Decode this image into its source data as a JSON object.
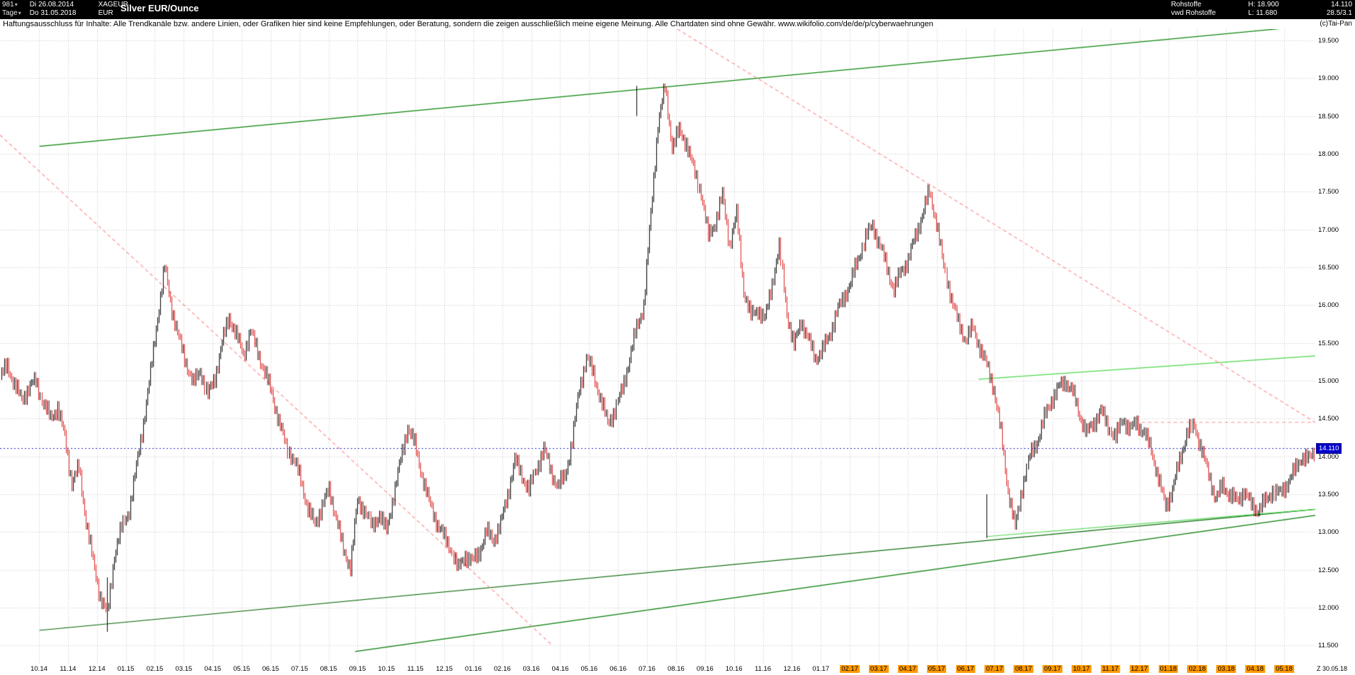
{
  "window": {
    "bars_count": "981",
    "period": "Tage",
    "date_from": "Di 26.08.2014",
    "date_to": "Do 31.05.2018",
    "symbol": "XAGEUR",
    "currency": "EUR",
    "title": "Silver EUR/Ounce",
    "feed_line1": "Rohstoffe",
    "feed_line2": "vwd Rohstoffe",
    "high": "H: 18.900",
    "low": "L: 11.680",
    "last": "14.110",
    "range_info": "28.5/3.1",
    "copyright": "(c)Tai-Pan"
  },
  "icons": {
    "dropdown_caret": "▾"
  },
  "disclaimer": "Haftungsausschluss für Inhalte: Alle Trendkanäle bzw. andere Linien, oder Grafiken hier sind keine Empfehlungen, oder Beratung, sondern die zeigen ausschließlich meine eigene Meinung. Alle Chartdaten sind ohne Gewähr.  www.wikifolio.com/de/de/p/cyberwaehrungen",
  "chart_data": {
    "type": "candlestick",
    "title": "Silver EUR/Ounce",
    "instrument": "XAGEUR",
    "period_high": 18.9,
    "period_low": 11.68,
    "last_price": 14.11,
    "ylim": [
      11.25,
      19.65
    ],
    "grid": true,
    "up_color": "#000000",
    "down_color": "#dd2222",
    "highlight_color": "#ff9900",
    "y_ticks": [
      "19.500",
      "19.000",
      "18.500",
      "18.000",
      "17.500",
      "17.000",
      "16.500",
      "16.000",
      "15.500",
      "15.000",
      "14.500",
      "14.000",
      "13.500",
      "13.000",
      "12.500",
      "12.000",
      "11.500"
    ],
    "x_labels": [
      "10.14",
      "11.14",
      "12.14",
      "01.15",
      "02.15",
      "03.15",
      "04.15",
      "05.15",
      "06.15",
      "07.15",
      "08.15",
      "09.15",
      "10.15",
      "11.15",
      "12.15",
      "01.16",
      "02.16",
      "03.16",
      "04.16",
      "05.16",
      "06.16",
      "07.16",
      "08.16",
      "09.16",
      "10.16",
      "11.16",
      "12.16",
      "01.17",
      "02.17",
      "03.17",
      "04.17",
      "05.17",
      "06.17",
      "07.17",
      "08.17",
      "09.17",
      "10.17",
      "11.17",
      "12.17",
      "01.18",
      "02.18",
      "03.18",
      "04.18",
      "05.18"
    ],
    "x_highlight_range": [
      28,
      43
    ],
    "closes_weekly": [
      15.05,
      15.2,
      14.95,
      14.75,
      14.9,
      15.0,
      14.7,
      14.5,
      14.65,
      14.25,
      13.65,
      13.85,
      13.15,
      12.6,
      12.15,
      11.9,
      12.7,
      13.05,
      13.3,
      13.85,
      14.45,
      15.1,
      15.85,
      16.5,
      15.95,
      15.55,
      15.25,
      14.95,
      15.15,
      14.8,
      15.05,
      15.5,
      15.85,
      15.6,
      15.35,
      15.65,
      15.4,
      15.1,
      14.85,
      14.45,
      14.15,
      13.95,
      13.7,
      13.3,
      13.1,
      13.35,
      13.55,
      13.2,
      12.75,
      12.55,
      13.4,
      13.3,
      13.05,
      13.25,
      13.0,
      13.5,
      13.95,
      14.4,
      14.15,
      13.75,
      13.4,
      13.15,
      12.95,
      12.8,
      12.5,
      12.7,
      12.6,
      12.75,
      13.0,
      12.9,
      13.1,
      13.5,
      13.95,
      13.75,
      13.55,
      13.85,
      14.1,
      13.8,
      13.6,
      13.75,
      14.2,
      14.9,
      15.3,
      15.1,
      14.75,
      14.45,
      14.6,
      14.9,
      15.3,
      15.7,
      16.0,
      17.2,
      18.4,
      18.88,
      18.1,
      18.3,
      18.15,
      17.8,
      17.5,
      16.9,
      17.1,
      17.45,
      16.8,
      17.2,
      16.2,
      15.85,
      15.95,
      15.8,
      16.3,
      16.75,
      15.9,
      15.45,
      15.8,
      15.55,
      15.3,
      15.4,
      15.6,
      15.9,
      16.1,
      16.3,
      16.6,
      16.9,
      17.05,
      16.8,
      16.5,
      16.2,
      16.45,
      16.6,
      16.9,
      17.2,
      17.5,
      17.1,
      16.5,
      16.1,
      15.75,
      15.55,
      15.7,
      15.45,
      15.2,
      14.9,
      14.3,
      13.55,
      13.05,
      13.6,
      14.0,
      14.2,
      14.5,
      14.75,
      14.9,
      15.0,
      14.85,
      14.55,
      14.3,
      14.45,
      14.6,
      14.4,
      14.25,
      14.5,
      14.35,
      14.45,
      14.3,
      14.1,
      13.7,
      13.35,
      13.55,
      13.95,
      14.3,
      14.4,
      14.1,
      13.75,
      13.45,
      13.6,
      13.5,
      13.4,
      13.55,
      13.35,
      13.3,
      13.4,
      13.55,
      13.5,
      13.65,
      13.8,
      14.0,
      13.95,
      14.11
    ],
    "spikes": [
      {
        "x_frac": 0.0815,
        "from": 12.4,
        "to": 11.68,
        "color": "#000000"
      },
      {
        "x_frac": 0.4837,
        "from": 18.5,
        "to": 18.9,
        "color": "#000000"
      },
      {
        "x_frac": 0.75,
        "from": 13.5,
        "to": 12.92,
        "color": "#000000"
      }
    ],
    "trend_lines": [
      {
        "name": "upper-channel-green",
        "color": "#008000",
        "dash": false,
        "from": [
          0.03,
          18.1
        ],
        "to": [
          1.0,
          19.7
        ]
      },
      {
        "name": "lower-channel-dark-green",
        "color": "#006400",
        "dash": false,
        "from": [
          0.03,
          11.7
        ],
        "to": [
          1.0,
          13.3
        ]
      },
      {
        "name": "rising-support-dark-green",
        "color": "#007a00",
        "dash": false,
        "from": [
          0.27,
          11.42
        ],
        "to": [
          1.0,
          13.22
        ]
      },
      {
        "name": "resistance-light-green",
        "color": "#4ad64a",
        "dash": false,
        "from": [
          0.744,
          15.02
        ],
        "to": [
          1.0,
          15.33
        ]
      },
      {
        "name": "support-light-green",
        "color": "#4ad64a",
        "dash": false,
        "from": [
          0.75,
          12.94
        ],
        "to": [
          1.0,
          13.3
        ]
      },
      {
        "name": "falling-dashed-pink-left",
        "color": "#ff9090",
        "dash": true,
        "from": [
          0.0,
          18.25
        ],
        "to": [
          0.42,
          11.5
        ]
      },
      {
        "name": "falling-dashed-pink-right",
        "color": "#ff9090",
        "dash": true,
        "from": [
          0.515,
          19.65
        ],
        "to": [
          1.0,
          14.45
        ]
      },
      {
        "name": "horizontal-dashed-pink",
        "color": "#ffaaaa",
        "dash": true,
        "from": [
          0.868,
          14.45
        ],
        "to": [
          1.0,
          14.45
        ]
      }
    ],
    "last_price_line": {
      "price": 14.11,
      "color": "#2222cc",
      "label": "14.110",
      "label_bg": "#0000cc"
    },
    "last_date_label": "Z 30.05.18"
  }
}
